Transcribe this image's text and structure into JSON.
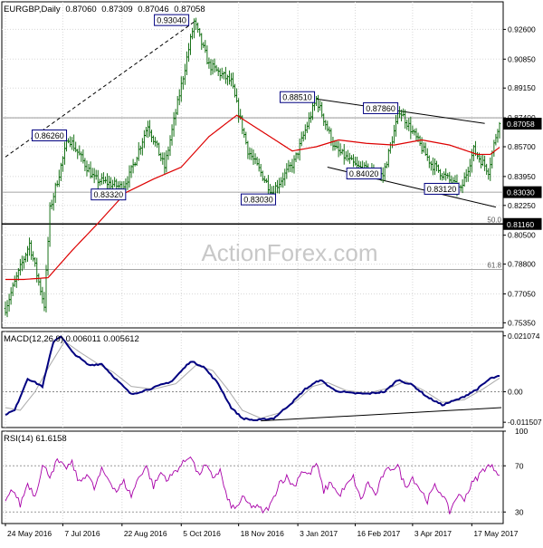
{
  "chart_data": [
    {
      "type": "ohlc",
      "panel": "price",
      "symbol": "EURGBP",
      "timeframe": "Daily",
      "header_values": [
        "0.87060",
        "0.87309",
        "0.87046",
        "0.87058"
      ],
      "current_price": 0.87058,
      "current_price_label": "0.87058",
      "ylim": [
        0.7505,
        0.9422
      ],
      "y_ticks": [
        0.7535,
        0.7705,
        0.788,
        0.805,
        0.8225,
        0.8395,
        0.857,
        0.874,
        0.8915,
        0.9085,
        0.926
      ],
      "y_tick_labels": [
        "0.75350",
        "0.77050",
        "0.78800",
        "0.80500",
        "0.82250",
        "0.83950",
        "0.85700",
        "0.87400",
        "0.89150",
        "0.90850",
        "0.92600"
      ],
      "x_tick_labels": [
        "24 May 2016",
        "7 Jul 2016",
        "22 Aug 2016",
        "5 Oct 2016",
        "18 Nov 2016",
        "3 Jan 2017",
        "16 Feb 2017",
        "3 Apr 2017",
        "17 May 2017"
      ],
      "x_tick_index": [
        0,
        31,
        63,
        95,
        126,
        158,
        189,
        220,
        252
      ],
      "n_bars": 268,
      "key_points": [
        {
          "i": 0,
          "v": 0.762
        },
        {
          "i": 6,
          "v": 0.78
        },
        {
          "i": 13,
          "v": 0.8
        },
        {
          "i": 21,
          "v": 0.764
        },
        {
          "i": 24,
          "v": 0.82
        },
        {
          "i": 34,
          "v": 0.8626
        },
        {
          "i": 48,
          "v": 0.838
        },
        {
          "i": 63,
          "v": 0.8332
        },
        {
          "i": 67,
          "v": 0.84
        },
        {
          "i": 77,
          "v": 0.87
        },
        {
          "i": 86,
          "v": 0.845
        },
        {
          "i": 102,
          "v": 0.9304
        },
        {
          "i": 110,
          "v": 0.905
        },
        {
          "i": 122,
          "v": 0.895
        },
        {
          "i": 131,
          "v": 0.855
        },
        {
          "i": 144,
          "v": 0.8303
        },
        {
          "i": 156,
          "v": 0.848
        },
        {
          "i": 168,
          "v": 0.8851
        },
        {
          "i": 178,
          "v": 0.856
        },
        {
          "i": 190,
          "v": 0.845
        },
        {
          "i": 204,
          "v": 0.8402
        },
        {
          "i": 213,
          "v": 0.8786
        },
        {
          "i": 230,
          "v": 0.847
        },
        {
          "i": 246,
          "v": 0.8312
        },
        {
          "i": 253,
          "v": 0.855
        },
        {
          "i": 261,
          "v": 0.843
        },
        {
          "i": 267,
          "v": 0.8735
        }
      ],
      "moving_average": [
        {
          "i": 0,
          "v": 0.779
        },
        {
          "i": 10,
          "v": 0.779
        },
        {
          "i": 23,
          "v": 0.78
        },
        {
          "i": 36,
          "v": 0.796
        },
        {
          "i": 50,
          "v": 0.812
        },
        {
          "i": 65,
          "v": 0.83
        },
        {
          "i": 80,
          "v": 0.838
        },
        {
          "i": 95,
          "v": 0.845
        },
        {
          "i": 110,
          "v": 0.863
        },
        {
          "i": 125,
          "v": 0.8755
        },
        {
          "i": 140,
          "v": 0.865
        },
        {
          "i": 155,
          "v": 0.8545
        },
        {
          "i": 168,
          "v": 0.857
        },
        {
          "i": 180,
          "v": 0.861
        },
        {
          "i": 195,
          "v": 0.859
        },
        {
          "i": 210,
          "v": 0.858
        },
        {
          "i": 225,
          "v": 0.861
        },
        {
          "i": 240,
          "v": 0.858
        },
        {
          "i": 255,
          "v": 0.8525
        },
        {
          "i": 262,
          "v": 0.8525
        },
        {
          "i": 268,
          "v": 0.8575
        }
      ],
      "annotations": [
        {
          "text": "0.93040",
          "i": 102,
          "v": 0.9304,
          "pos": "left-above"
        },
        {
          "text": "0.86260",
          "i": 34,
          "v": 0.8626,
          "pos": "left"
        },
        {
          "text": "0.83320",
          "i": 63,
          "v": 0.8332,
          "pos": "left-below"
        },
        {
          "text": "0.83030",
          "i": 144,
          "v": 0.8303,
          "pos": "left-below"
        },
        {
          "text": "0.88510",
          "i": 168,
          "v": 0.8851,
          "pos": "left"
        },
        {
          "text": "0.87860",
          "i": 213,
          "v": 0.8786,
          "pos": "left"
        },
        {
          "text": "0.84020",
          "i": 204,
          "v": 0.8402,
          "pos": "left"
        },
        {
          "text": "0.83120",
          "i": 246,
          "v": 0.8312,
          "pos": "left"
        }
      ],
      "horizontal_lines": [
        {
          "v": 0.874,
          "label": ""
        },
        {
          "v": 0.8303,
          "label": "0.83030"
        },
        {
          "v": 0.8116,
          "label": "0.81160",
          "fib": "50.0"
        },
        {
          "v": 0.7849,
          "label": "",
          "fib": "61.8"
        }
      ],
      "trendlines": [
        {
          "style": "dashed",
          "from": {
            "i": 0,
            "v": 0.851
          },
          "to": {
            "i": 102,
            "v": 0.9304
          }
        },
        {
          "style": "solid",
          "from": {
            "i": 168,
            "v": 0.8851
          },
          "to": {
            "i": 259,
            "v": 0.8707
          }
        },
        {
          "style": "solid",
          "from": {
            "i": 174,
            "v": 0.845
          },
          "to": {
            "i": 265,
            "v": 0.8215
          }
        }
      ]
    },
    {
      "type": "line",
      "panel": "macd",
      "title": "MACD(12,26,9) 0.006011 0.005612",
      "ylim": [
        -0.0135,
        0.0227
      ],
      "y_ticks": [
        0.021074,
        0.0,
        -0.011507
      ],
      "y_tick_labels": [
        "0.021074",
        "0.00",
        "-0.011507"
      ],
      "zero_line": 0.0,
      "macd_points": [
        {
          "i": 0,
          "v": -0.0085
        },
        {
          "i": 5,
          "v": -0.007
        },
        {
          "i": 12,
          "v": 0.005
        },
        {
          "i": 20,
          "v": 0.002
        },
        {
          "i": 26,
          "v": 0.019
        },
        {
          "i": 30,
          "v": 0.021
        },
        {
          "i": 36,
          "v": 0.015
        },
        {
          "i": 45,
          "v": 0.01
        },
        {
          "i": 52,
          "v": 0.0105
        },
        {
          "i": 60,
          "v": 0.0045
        },
        {
          "i": 68,
          "v": -0.001
        },
        {
          "i": 80,
          "v": 0.0015
        },
        {
          "i": 90,
          "v": 0.004
        },
        {
          "i": 100,
          "v": 0.0115
        },
        {
          "i": 107,
          "v": 0.0095
        },
        {
          "i": 115,
          "v": 0.003
        },
        {
          "i": 122,
          "v": -0.006
        },
        {
          "i": 128,
          "v": -0.01
        },
        {
          "i": 135,
          "v": -0.0108
        },
        {
          "i": 145,
          "v": -0.01
        },
        {
          "i": 155,
          "v": -0.004
        },
        {
          "i": 162,
          "v": 0.001
        },
        {
          "i": 170,
          "v": 0.0045
        },
        {
          "i": 178,
          "v": 0.0005
        },
        {
          "i": 186,
          "v": -0.0005
        },
        {
          "i": 195,
          "v": -0.0008
        },
        {
          "i": 205,
          "v": 0.0
        },
        {
          "i": 212,
          "v": 0.0045
        },
        {
          "i": 220,
          "v": 0.0025
        },
        {
          "i": 228,
          "v": -0.002
        },
        {
          "i": 236,
          "v": -0.005
        },
        {
          "i": 246,
          "v": -0.0025
        },
        {
          "i": 255,
          "v": 0.001
        },
        {
          "i": 262,
          "v": 0.005
        },
        {
          "i": 268,
          "v": 0.006
        }
      ],
      "signal_points": [
        {
          "i": 0,
          "v": -0.006
        },
        {
          "i": 8,
          "v": -0.007
        },
        {
          "i": 16,
          "v": 0.0
        },
        {
          "i": 24,
          "v": 0.01
        },
        {
          "i": 32,
          "v": 0.019
        },
        {
          "i": 40,
          "v": 0.015
        },
        {
          "i": 50,
          "v": 0.0105
        },
        {
          "i": 58,
          "v": 0.0075
        },
        {
          "i": 68,
          "v": 0.002
        },
        {
          "i": 80,
          "v": 0.001
        },
        {
          "i": 92,
          "v": 0.003
        },
        {
          "i": 103,
          "v": 0.01
        },
        {
          "i": 112,
          "v": 0.008
        },
        {
          "i": 120,
          "v": 0.001
        },
        {
          "i": 128,
          "v": -0.007
        },
        {
          "i": 138,
          "v": -0.01
        },
        {
          "i": 148,
          "v": -0.008
        },
        {
          "i": 158,
          "v": -0.003
        },
        {
          "i": 166,
          "v": 0.002
        },
        {
          "i": 174,
          "v": 0.0035
        },
        {
          "i": 184,
          "v": 0.0005
        },
        {
          "i": 196,
          "v": -0.0005
        },
        {
          "i": 208,
          "v": 0.0015
        },
        {
          "i": 216,
          "v": 0.004
        },
        {
          "i": 226,
          "v": 0.0005
        },
        {
          "i": 236,
          "v": -0.004
        },
        {
          "i": 248,
          "v": -0.003
        },
        {
          "i": 258,
          "v": 0.001
        },
        {
          "i": 268,
          "v": 0.0056
        }
      ],
      "trendline": {
        "from": {
          "i": 138,
          "v": -0.011
        },
        "to": {
          "i": 268,
          "v": -0.006
        }
      }
    },
    {
      "type": "line",
      "panel": "rsi",
      "title": "RSI(14) 61.6158",
      "ylim": [
        20,
        100
      ],
      "y_ticks": [
        100,
        70,
        30
      ],
      "y_tick_labels": [
        "100",
        "70",
        "30"
      ],
      "dotted_levels": [
        70,
        30
      ],
      "points": [
        {
          "i": 0,
          "v": 38
        },
        {
          "i": 4,
          "v": 50
        },
        {
          "i": 8,
          "v": 36
        },
        {
          "i": 12,
          "v": 55
        },
        {
          "i": 16,
          "v": 44
        },
        {
          "i": 20,
          "v": 70
        },
        {
          "i": 24,
          "v": 62
        },
        {
          "i": 28,
          "v": 74
        },
        {
          "i": 32,
          "v": 68
        },
        {
          "i": 36,
          "v": 72
        },
        {
          "i": 40,
          "v": 55
        },
        {
          "i": 44,
          "v": 64
        },
        {
          "i": 48,
          "v": 50
        },
        {
          "i": 52,
          "v": 66
        },
        {
          "i": 56,
          "v": 58
        },
        {
          "i": 60,
          "v": 48
        },
        {
          "i": 64,
          "v": 56
        },
        {
          "i": 68,
          "v": 44
        },
        {
          "i": 72,
          "v": 60
        },
        {
          "i": 76,
          "v": 70
        },
        {
          "i": 80,
          "v": 52
        },
        {
          "i": 84,
          "v": 64
        },
        {
          "i": 88,
          "v": 58
        },
        {
          "i": 92,
          "v": 66
        },
        {
          "i": 96,
          "v": 72
        },
        {
          "i": 100,
          "v": 80
        },
        {
          "i": 104,
          "v": 62
        },
        {
          "i": 108,
          "v": 70
        },
        {
          "i": 112,
          "v": 60
        },
        {
          "i": 116,
          "v": 66
        },
        {
          "i": 120,
          "v": 40
        },
        {
          "i": 124,
          "v": 32
        },
        {
          "i": 128,
          "v": 42
        },
        {
          "i": 132,
          "v": 36
        },
        {
          "i": 136,
          "v": 34
        },
        {
          "i": 140,
          "v": 30
        },
        {
          "i": 144,
          "v": 38
        },
        {
          "i": 148,
          "v": 56
        },
        {
          "i": 152,
          "v": 60
        },
        {
          "i": 156,
          "v": 52
        },
        {
          "i": 160,
          "v": 66
        },
        {
          "i": 164,
          "v": 62
        },
        {
          "i": 168,
          "v": 72
        },
        {
          "i": 172,
          "v": 48
        },
        {
          "i": 176,
          "v": 56
        },
        {
          "i": 180,
          "v": 44
        },
        {
          "i": 184,
          "v": 52
        },
        {
          "i": 188,
          "v": 60
        },
        {
          "i": 192,
          "v": 40
        },
        {
          "i": 196,
          "v": 56
        },
        {
          "i": 200,
          "v": 44
        },
        {
          "i": 204,
          "v": 62
        },
        {
          "i": 208,
          "v": 68
        },
        {
          "i": 212,
          "v": 70
        },
        {
          "i": 216,
          "v": 52
        },
        {
          "i": 220,
          "v": 60
        },
        {
          "i": 224,
          "v": 50
        },
        {
          "i": 228,
          "v": 40
        },
        {
          "i": 232,
          "v": 52
        },
        {
          "i": 236,
          "v": 46
        },
        {
          "i": 240,
          "v": 30
        },
        {
          "i": 244,
          "v": 44
        },
        {
          "i": 248,
          "v": 42
        },
        {
          "i": 252,
          "v": 54
        },
        {
          "i": 256,
          "v": 62
        },
        {
          "i": 260,
          "v": 70
        },
        {
          "i": 264,
          "v": 68
        },
        {
          "i": 268,
          "v": 62
        }
      ]
    }
  ],
  "watermark": "ActionForex.com",
  "colors": {
    "price_bars": "#006400",
    "moving_average": "#dd0000",
    "macd_line": "#000080",
    "signal_line": "#aaaaaa",
    "rsi_line": "#a800a8",
    "label_border": "#000080",
    "grid": "#d8d8d8"
  }
}
